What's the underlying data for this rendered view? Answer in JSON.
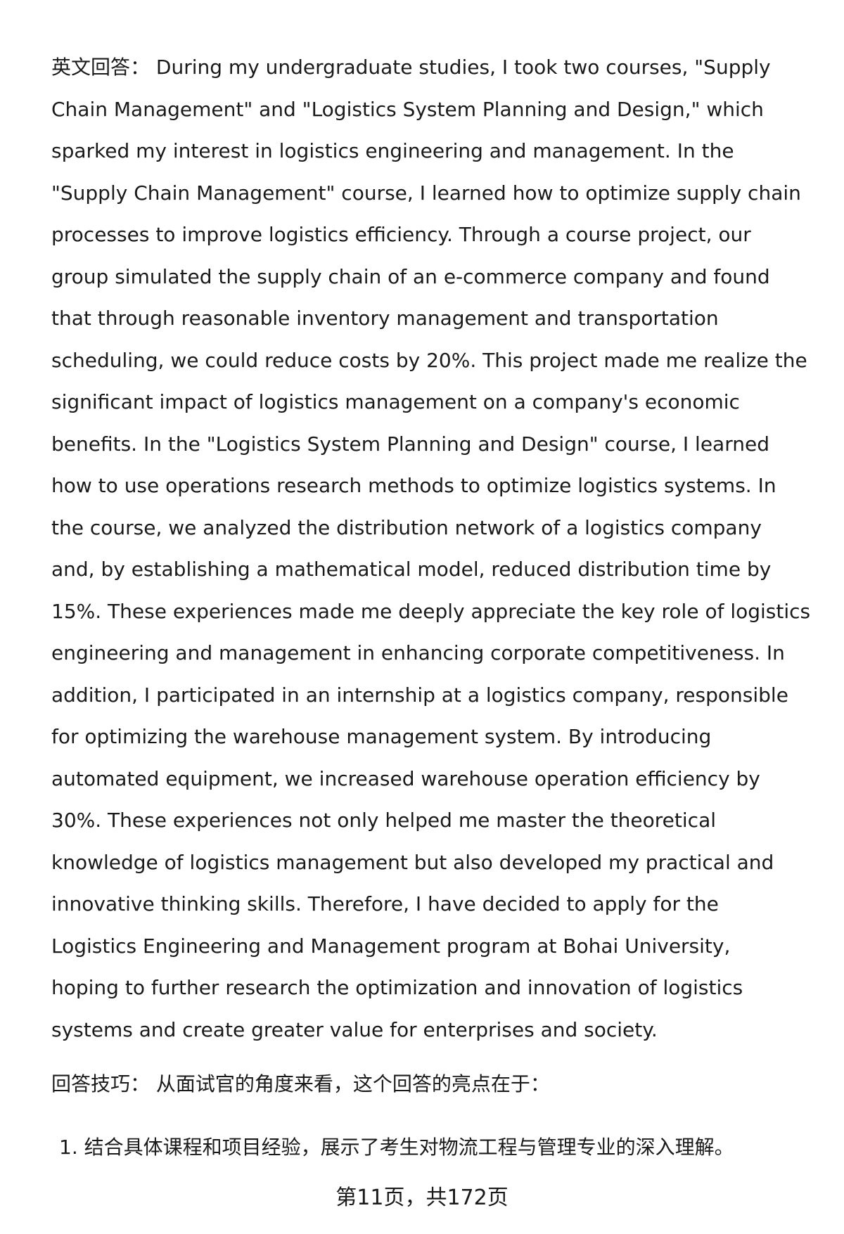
{
  "answer": {
    "lines": [
      "英文回答：  During my undergraduate studies, I took two courses, \"Supply",
      "Chain Management\" and \"Logistics System Planning and Design,\" which",
      "sparked my interest in logistics engineering and management. In the",
      "\"Supply Chain Management\" course, I learned how to optimize supply chain",
      "processes to improve logistics efficiency. Through a course project, our",
      "group simulated the supply chain of an e-commerce company and found",
      "that through reasonable inventory management and transportation",
      "scheduling, we could reduce costs by 20%. This project made me realize the",
      "significant impact of logistics management on a company's economic",
      "benefits. In the \"Logistics System Planning and Design\" course, I learned",
      "how to use operations research methods to optimize logistics systems. In",
      "the course, we analyzed the distribution network of a logistics company",
      "and, by establishing a mathematical model, reduced distribution time by",
      "15%. These experiences made me deeply appreciate the key role of logistics",
      "engineering and management in enhancing corporate competitiveness. In",
      "addition, I participated in an internship at a logistics company, responsible",
      "for optimizing the warehouse management system. By introducing",
      "automated equipment, we increased warehouse operation efficiency by",
      "30%. These experiences not only helped me master the theoretical",
      "knowledge of logistics management but also developed my practical and",
      "innovative thinking skills. Therefore, I have decided to apply for the",
      "Logistics Engineering and Management program at Bohai University,",
      "hoping to further research the optimization and innovation of logistics",
      "systems and create greater value for enterprises and society."
    ]
  },
  "tips": "回答技巧：  从面试官的角度来看，这个回答的亮点在于：",
  "points": [
    "1.  结合具体课程和项目经验，展示了考生对物流工程与管理专业的深入理解。"
  ],
  "footer": "第11页，共172页"
}
